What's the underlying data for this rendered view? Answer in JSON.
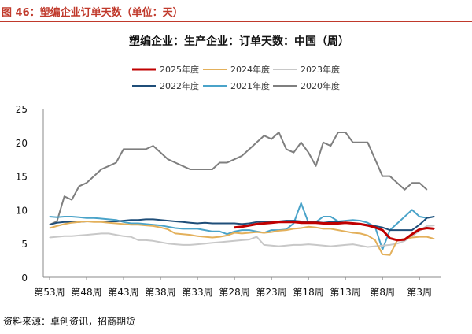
{
  "header": {
    "caption": "图 46：塑编企业订单天数（单位：天）"
  },
  "footer": {
    "source": "资料来源：卓创资讯，招商期货"
  },
  "chart_data": {
    "type": "line",
    "title": "塑编企业：生产企业：订单天数：中国（周）",
    "xlabel": "",
    "ylabel": "",
    "ylim": [
      0,
      25
    ],
    "yticks": [
      0,
      5,
      10,
      15,
      20,
      25
    ],
    "x_ticks": [
      "第53周",
      "第48周",
      "第43周",
      "第38周",
      "第33周",
      "第28周",
      "第23周",
      "第18周",
      "第13周",
      "第8周",
      "第3周"
    ],
    "grid": false,
    "legend_position": "top",
    "series": [
      {
        "name": "2025年度",
        "color": "#c00000",
        "points": [
          [
            28,
            7.4
          ],
          [
            27,
            7.5
          ],
          [
            26,
            7.7
          ],
          [
            25,
            7.9
          ],
          [
            24,
            8.0
          ],
          [
            23,
            8.1
          ],
          [
            22,
            8.2
          ],
          [
            21,
            8.2
          ],
          [
            20,
            8.2
          ],
          [
            19,
            8.1
          ],
          [
            18,
            8.1
          ],
          [
            17,
            8.1
          ],
          [
            16,
            8.0
          ],
          [
            15,
            8.0
          ],
          [
            14,
            8.0
          ],
          [
            13,
            8.1
          ],
          [
            12,
            8.0
          ],
          [
            11,
            7.9
          ],
          [
            10,
            7.7
          ],
          [
            9,
            7.4
          ],
          [
            8,
            7.0
          ],
          [
            7,
            5.8
          ],
          [
            6,
            5.5
          ],
          [
            5,
            5.6
          ],
          [
            4,
            6.4
          ],
          [
            3,
            7.1
          ],
          [
            2,
            7.3
          ],
          [
            1,
            7.2
          ]
        ]
      },
      {
        "name": "2024年度",
        "color": "#e3b05b",
        "points": [
          [
            53,
            7.3
          ],
          [
            52,
            7.6
          ],
          [
            51,
            7.9
          ],
          [
            50,
            8.1
          ],
          [
            49,
            8.2
          ],
          [
            48,
            8.3
          ],
          [
            47,
            8.2
          ],
          [
            46,
            8.2
          ],
          [
            45,
            8.1
          ],
          [
            44,
            8.0
          ],
          [
            43,
            7.9
          ],
          [
            42,
            7.8
          ],
          [
            41,
            7.8
          ],
          [
            40,
            7.7
          ],
          [
            39,
            7.6
          ],
          [
            38,
            7.4
          ],
          [
            37,
            7.1
          ],
          [
            36,
            6.5
          ],
          [
            35,
            6.4
          ],
          [
            34,
            6.3
          ],
          [
            33,
            6.1
          ],
          [
            32,
            6.0
          ],
          [
            31,
            5.9
          ],
          [
            30,
            6.0
          ],
          [
            29,
            6.2
          ],
          [
            28,
            6.6
          ],
          [
            27,
            6.5
          ],
          [
            26,
            6.6
          ],
          [
            25,
            6.7
          ],
          [
            24,
            6.6
          ],
          [
            23,
            6.7
          ],
          [
            22,
            6.9
          ],
          [
            21,
            7.0
          ],
          [
            20,
            7.2
          ],
          [
            19,
            7.3
          ],
          [
            18,
            7.5
          ],
          [
            17,
            7.4
          ],
          [
            16,
            7.2
          ],
          [
            15,
            7.2
          ],
          [
            14,
            7.0
          ],
          [
            13,
            6.8
          ],
          [
            12,
            6.6
          ],
          [
            11,
            6.5
          ],
          [
            10,
            6.2
          ],
          [
            9,
            5.5
          ],
          [
            8,
            3.4
          ],
          [
            7,
            3.3
          ],
          [
            6,
            5.5
          ],
          [
            5,
            5.7
          ],
          [
            4,
            5.9
          ],
          [
            3,
            6.0
          ],
          [
            2,
            6.0
          ],
          [
            1,
            5.7
          ]
        ]
      },
      {
        "name": "2023年度",
        "color": "#c8c8c8",
        "points": [
          [
            53,
            5.9
          ],
          [
            52,
            6.0
          ],
          [
            51,
            6.1
          ],
          [
            50,
            6.1
          ],
          [
            49,
            6.2
          ],
          [
            48,
            6.3
          ],
          [
            47,
            6.4
          ],
          [
            46,
            6.5
          ],
          [
            45,
            6.5
          ],
          [
            44,
            6.3
          ],
          [
            43,
            6.1
          ],
          [
            42,
            6.0
          ],
          [
            41,
            5.5
          ],
          [
            40,
            5.5
          ],
          [
            39,
            5.4
          ],
          [
            38,
            5.2
          ],
          [
            37,
            5.0
          ],
          [
            36,
            4.9
          ],
          [
            35,
            4.8
          ],
          [
            34,
            4.8
          ],
          [
            33,
            4.9
          ],
          [
            32,
            5.0
          ],
          [
            31,
            5.1
          ],
          [
            30,
            5.2
          ],
          [
            29,
            5.3
          ],
          [
            28,
            5.4
          ],
          [
            27,
            5.5
          ],
          [
            26,
            5.6
          ],
          [
            25,
            6.0
          ],
          [
            24,
            4.8
          ],
          [
            23,
            4.7
          ],
          [
            22,
            4.6
          ],
          [
            21,
            4.7
          ],
          [
            20,
            4.8
          ],
          [
            19,
            4.8
          ],
          [
            18,
            4.9
          ],
          [
            17,
            4.8
          ],
          [
            16,
            4.7
          ],
          [
            15,
            4.6
          ],
          [
            14,
            4.7
          ],
          [
            13,
            4.8
          ],
          [
            12,
            4.9
          ],
          [
            11,
            4.7
          ],
          [
            10,
            4.5
          ],
          [
            9,
            4.6
          ],
          [
            8,
            4.7
          ],
          [
            7,
            4.8
          ],
          [
            6,
            5.0
          ],
          [
            5,
            5.4
          ],
          [
            4,
            6.1
          ],
          [
            3,
            6.9
          ],
          [
            2,
            7.6
          ],
          [
            1,
            7.7
          ]
        ]
      },
      {
        "name": "2022年度",
        "color": "#1f4e79",
        "points": [
          [
            53,
            7.8
          ],
          [
            52,
            8.1
          ],
          [
            51,
            8.2
          ],
          [
            50,
            8.2
          ],
          [
            49,
            8.2
          ],
          [
            48,
            8.3
          ],
          [
            47,
            8.3
          ],
          [
            46,
            8.3
          ],
          [
            45,
            8.3
          ],
          [
            44,
            8.3
          ],
          [
            43,
            8.4
          ],
          [
            42,
            8.5
          ],
          [
            41,
            8.5
          ],
          [
            40,
            8.6
          ],
          [
            39,
            8.6
          ],
          [
            38,
            8.5
          ],
          [
            37,
            8.4
          ],
          [
            36,
            8.3
          ],
          [
            35,
            8.2
          ],
          [
            34,
            8.1
          ],
          [
            33,
            8.0
          ],
          [
            32,
            8.1
          ],
          [
            31,
            8.0
          ],
          [
            30,
            8.0
          ],
          [
            29,
            8.0
          ],
          [
            28,
            8.0
          ],
          [
            27,
            7.9
          ],
          [
            26,
            8.0
          ],
          [
            25,
            8.2
          ],
          [
            24,
            8.3
          ],
          [
            23,
            8.3
          ],
          [
            22,
            8.3
          ],
          [
            21,
            8.4
          ],
          [
            20,
            8.4
          ],
          [
            19,
            8.3
          ],
          [
            18,
            8.2
          ],
          [
            17,
            8.2
          ],
          [
            16,
            8.1
          ],
          [
            15,
            8.2
          ],
          [
            14,
            8.2
          ],
          [
            13,
            8.1
          ],
          [
            12,
            8.0
          ],
          [
            11,
            7.9
          ],
          [
            10,
            7.8
          ],
          [
            9,
            7.6
          ],
          [
            8,
            7.4
          ],
          [
            7,
            7.0
          ],
          [
            6,
            7.0
          ],
          [
            5,
            7.0
          ],
          [
            4,
            7.0
          ],
          [
            3,
            7.8
          ],
          [
            2,
            8.8
          ],
          [
            1,
            9.0
          ]
        ]
      },
      {
        "name": "2021年度",
        "color": "#4aa3c9",
        "points": [
          [
            53,
            9.0
          ],
          [
            52,
            8.9
          ],
          [
            51,
            9.0
          ],
          [
            50,
            9.0
          ],
          [
            49,
            8.9
          ],
          [
            48,
            8.8
          ],
          [
            47,
            8.8
          ],
          [
            46,
            8.7
          ],
          [
            45,
            8.6
          ],
          [
            44,
            8.5
          ],
          [
            43,
            8.2
          ],
          [
            42,
            8.0
          ],
          [
            41,
            8.0
          ],
          [
            40,
            7.9
          ],
          [
            39,
            7.8
          ],
          [
            38,
            7.7
          ],
          [
            37,
            7.5
          ],
          [
            36,
            7.3
          ],
          [
            35,
            7.2
          ],
          [
            34,
            7.2
          ],
          [
            33,
            7.2
          ],
          [
            32,
            7.0
          ],
          [
            31,
            6.8
          ],
          [
            30,
            6.8
          ],
          [
            29,
            6.4
          ],
          [
            28,
            6.8
          ],
          [
            27,
            7.0
          ],
          [
            26,
            7.0
          ],
          [
            25,
            6.8
          ],
          [
            24,
            6.6
          ],
          [
            23,
            7.0
          ],
          [
            22,
            7.0
          ],
          [
            21,
            7.1
          ],
          [
            20,
            8.0
          ],
          [
            19,
            11.0
          ],
          [
            18,
            8.1
          ],
          [
            17,
            8.2
          ],
          [
            16,
            9.0
          ],
          [
            15,
            9.0
          ],
          [
            14,
            8.3
          ],
          [
            13,
            8.4
          ],
          [
            12,
            8.5
          ],
          [
            11,
            8.4
          ],
          [
            10,
            8.1
          ],
          [
            9,
            7.5
          ],
          [
            8,
            4.1
          ],
          [
            7,
            7.0
          ],
          [
            6,
            8.0
          ],
          [
            5,
            9.0
          ],
          [
            4,
            10.0
          ],
          [
            3,
            9.0
          ],
          [
            2,
            8.8
          ],
          [
            1,
            9.0
          ]
        ]
      },
      {
        "name": "2020年度",
        "color": "#7f7f7f",
        "points": [
          [
            53,
            7.8
          ],
          [
            52,
            8.3
          ],
          [
            51,
            12.0
          ],
          [
            50,
            11.5
          ],
          [
            49,
            13.5
          ],
          [
            48,
            14.0
          ],
          [
            47,
            15.0
          ],
          [
            46,
            16.0
          ],
          [
            45,
            16.5
          ],
          [
            44,
            17.0
          ],
          [
            43,
            19.0
          ],
          [
            42,
            19.0
          ],
          [
            41,
            19.0
          ],
          [
            40,
            19.0
          ],
          [
            39,
            19.5
          ],
          [
            38,
            18.5
          ],
          [
            37,
            17.5
          ],
          [
            36,
            17.0
          ],
          [
            35,
            16.5
          ],
          [
            34,
            16.0
          ],
          [
            33,
            16.0
          ],
          [
            32,
            16.0
          ],
          [
            31,
            16.0
          ],
          [
            30,
            17.0
          ],
          [
            29,
            17.0
          ],
          [
            28,
            17.5
          ],
          [
            27,
            18.0
          ],
          [
            26,
            19.0
          ],
          [
            25,
            20.0
          ],
          [
            24,
            21.0
          ],
          [
            23,
            20.5
          ],
          [
            22,
            21.5
          ],
          [
            21,
            19.0
          ],
          [
            20,
            18.5
          ],
          [
            19,
            20.0
          ],
          [
            18,
            18.5
          ],
          [
            17,
            16.5
          ],
          [
            16,
            20.0
          ],
          [
            15,
            19.5
          ],
          [
            14,
            21.5
          ],
          [
            13,
            21.5
          ],
          [
            12,
            20.0
          ],
          [
            11,
            20.0
          ],
          [
            10,
            20.0
          ],
          [
            9,
            17.5
          ],
          [
            8,
            15.0
          ],
          [
            7,
            15.0
          ],
          [
            6,
            14.0
          ],
          [
            5,
            13.0
          ],
          [
            4,
            14.0
          ],
          [
            3,
            14.0
          ],
          [
            2,
            13.0
          ]
        ]
      }
    ]
  }
}
